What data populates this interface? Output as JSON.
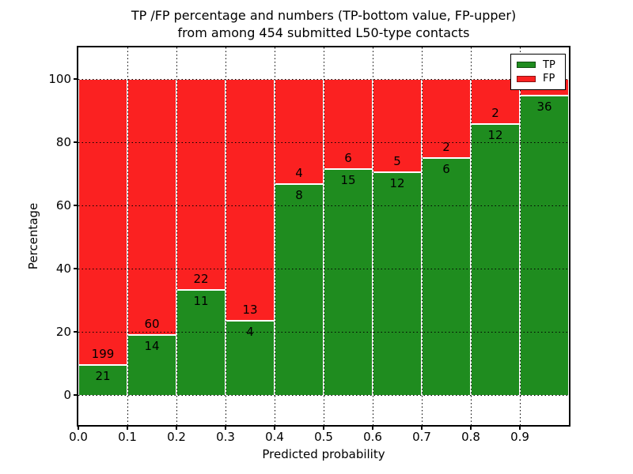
{
  "figure": {
    "title_line1": "TP /FP percentage and numbers (TP-bottom value, FP-upper)",
    "title_line2": "from among 454 submitted L50-type contacts"
  },
  "chart_data": {
    "type": "bar",
    "subtype": "stacked_percentage",
    "title": "TP /FP percentage and numbers (TP-bottom value, FP-upper)\nfrom among 454 submitted L50-type contacts",
    "xlabel": "Predicted probability",
    "ylabel": "Percentage",
    "total_submitted": 454,
    "bin_width": 0.1,
    "bin_starts": [
      0.0,
      0.1,
      0.2,
      0.3,
      0.4,
      0.5,
      0.6,
      0.7,
      0.8,
      0.9
    ],
    "x_tick_labels": [
      "0.0",
      "0.1",
      "0.2",
      "0.3",
      "0.4",
      "0.5",
      "0.6",
      "0.7",
      "0.8",
      "0.9"
    ],
    "y_tick_labels": [
      "0",
      "20",
      "40",
      "60",
      "80",
      "100"
    ],
    "y_tick_values": [
      0,
      20,
      40,
      60,
      80,
      100
    ],
    "xlim": [
      0.0,
      1.0
    ],
    "ylim": [
      -9.5,
      110
    ],
    "grid": "dotted",
    "series": [
      {
        "name": "TP",
        "color": "#1f8c1f",
        "values": [
          21,
          14,
          11,
          4,
          8,
          15,
          12,
          6,
          12,
          36
        ]
      },
      {
        "name": "FP",
        "color": "#fb2121",
        "values": [
          199,
          60,
          22,
          13,
          4,
          6,
          5,
          2,
          2,
          2
        ]
      }
    ],
    "tp_percent": [
      9.5,
      18.9,
      33.3,
      23.5,
      66.7,
      71.4,
      70.6,
      75.0,
      85.7,
      94.7
    ],
    "legend": {
      "position": "upper right",
      "entries": [
        {
          "label": "TP",
          "color": "#1f8c1f"
        },
        {
          "label": "FP",
          "color": "#fb2121"
        }
      ]
    }
  }
}
